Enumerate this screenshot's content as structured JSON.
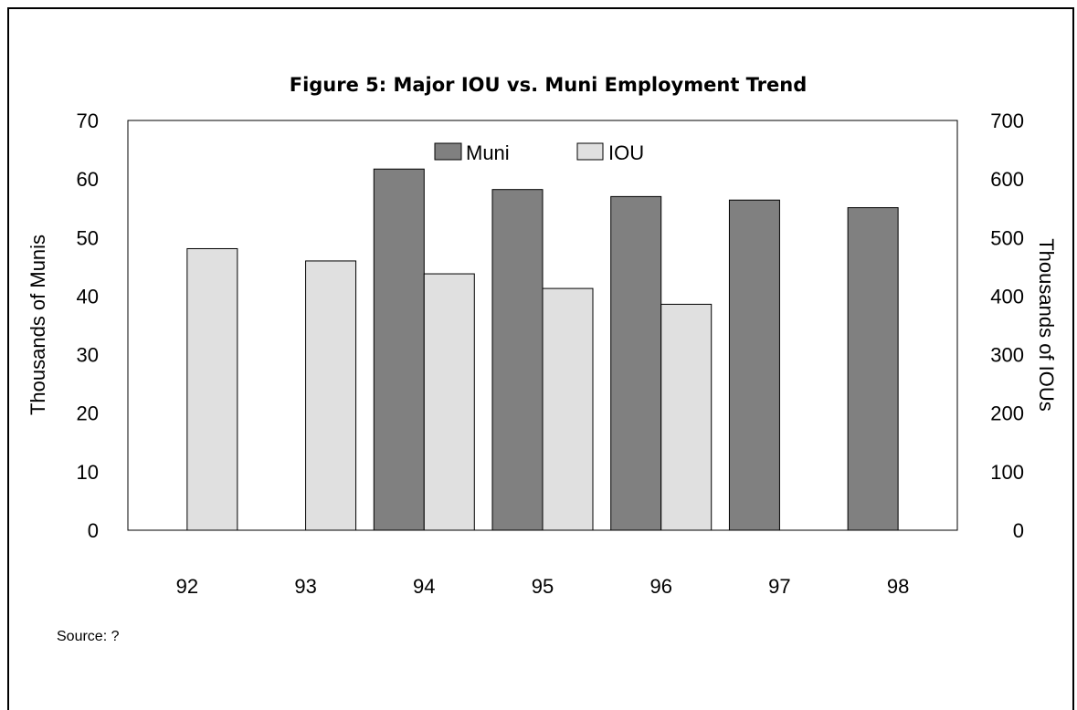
{
  "chart_data": {
    "type": "bar",
    "title": "Figure 5: Major IOU vs. Muni Employment Trend",
    "categories": [
      "92",
      "93",
      "94",
      "95",
      "96",
      "97",
      "98"
    ],
    "series": [
      {
        "name": "Muni",
        "axis": "left",
        "color": "#808080",
        "values": [
          null,
          null,
          61.7,
          58.2,
          57.0,
          56.4,
          55.1
        ]
      },
      {
        "name": "IOU",
        "axis": "right",
        "color": "#e0e0e0",
        "values": [
          481,
          460,
          438,
          413,
          386,
          null,
          null
        ]
      }
    ],
    "ylabel": "Thousands of Munis",
    "y2label": "Thousands of IOUs",
    "ylim": [
      0,
      70
    ],
    "y2lim": [
      0,
      700
    ],
    "yticks": [
      "0",
      "10",
      "20",
      "30",
      "40",
      "50",
      "60",
      "70"
    ],
    "y2ticks": [
      "0",
      "100",
      "200",
      "300",
      "400",
      "500",
      "600",
      "700"
    ],
    "grid": false,
    "legend_position": "top-center"
  },
  "source": "Source: ?"
}
